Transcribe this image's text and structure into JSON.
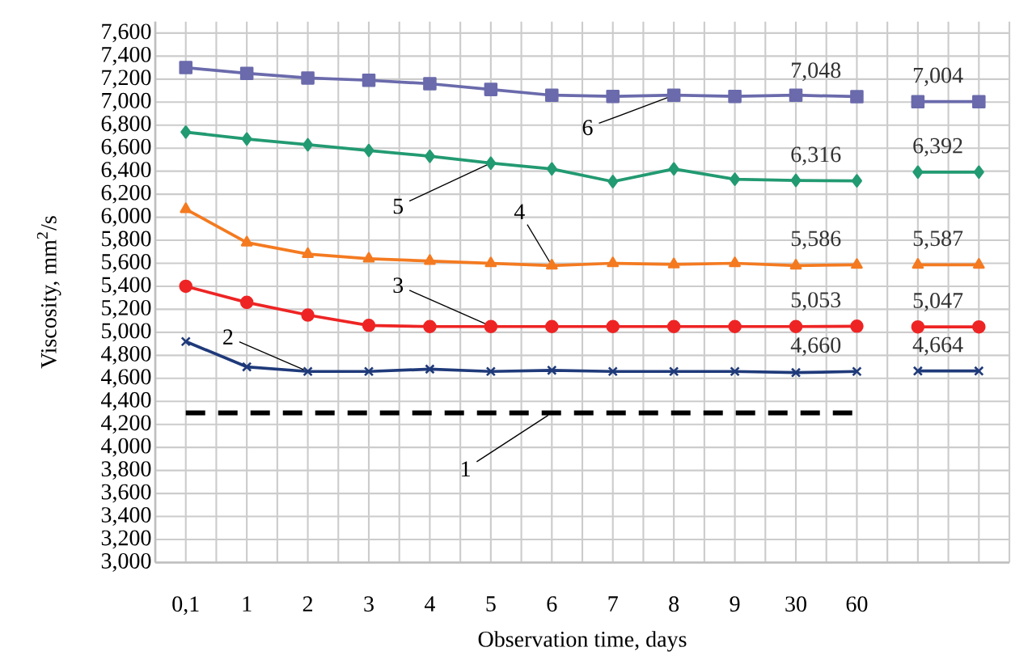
{
  "chart_data": {
    "type": "line",
    "xlabel": "Observation time, days",
    "ylabel": "Viscosity, mm$^{2}$/s",
    "categories": [
      "0,1",
      "1",
      "2",
      "3",
      "4",
      "5",
      "6",
      "7",
      "8",
      "9",
      "30",
      "60",
      null,
      null
    ],
    "ylim": [
      3000,
      7700
    ],
    "yticks": [
      {
        "value": 3000,
        "label": "3,000"
      },
      {
        "value": 3200,
        "label": "3,200"
      },
      {
        "value": 3400,
        "label": "3,400"
      },
      {
        "value": 3600,
        "label": "3,600"
      },
      {
        "value": 3800,
        "label": "3,800"
      },
      {
        "value": 4000,
        "label": "4,000"
      },
      {
        "value": 4200,
        "label": "4,200"
      },
      {
        "value": 4400,
        "label": "4,400"
      },
      {
        "value": 4600,
        "label": "4,600"
      },
      {
        "value": 4800,
        "label": "4,800"
      },
      {
        "value": 5000,
        "label": "5,000"
      },
      {
        "value": 5200,
        "label": "5,200"
      },
      {
        "value": 5400,
        "label": "5,400"
      },
      {
        "value": 5600,
        "label": "5,600"
      },
      {
        "value": 5800,
        "label": "5,800"
      },
      {
        "value": 6000,
        "label": "6,000"
      },
      {
        "value": 6200,
        "label": "6,200"
      },
      {
        "value": 6400,
        "label": "6,400"
      },
      {
        "value": 6600,
        "label": "6,600"
      },
      {
        "value": 6800,
        "label": "6,800"
      },
      {
        "value": 7000,
        "label": "7,000"
      },
      {
        "value": 7200,
        "label": "7,200"
      },
      {
        "value": 7400,
        "label": "7,400"
      },
      {
        "value": 7600,
        "label": "7,600"
      }
    ],
    "grid": true,
    "series": [
      {
        "color": "#000000",
        "marker": "none",
        "line_style": "dashed",
        "values": [
          4300,
          4300,
          4300,
          4300,
          4300,
          4300,
          4300,
          4300,
          4300,
          4300,
          4300,
          4300,
          null,
          null
        ]
      },
      {
        "color": "#1f3a7a",
        "marker": "cross",
        "values": [
          4920,
          4700,
          4660,
          4660,
          4680,
          4660,
          4670,
          4660,
          4660,
          4660,
          4650,
          4660,
          null,
          null
        ],
        "value_labels": [
          null,
          null,
          null,
          null,
          null,
          null,
          null,
          null,
          null,
          null,
          null,
          "4,660",
          null,
          null
        ]
      },
      {
        "color": "#1f3a7a",
        "marker": "cross",
        "values": [
          null,
          null,
          null,
          null,
          null,
          null,
          null,
          null,
          null,
          null,
          null,
          null,
          4664,
          4664
        ],
        "value_labels": [
          null,
          null,
          null,
          null,
          null,
          null,
          null,
          null,
          null,
          null,
          null,
          null,
          null,
          "4,664"
        ]
      },
      {
        "color": "#ee2424",
        "marker": "circle",
        "values": [
          5400,
          5260,
          5150,
          5060,
          5050,
          5050,
          5050,
          5050,
          5050,
          5050,
          5050,
          5053,
          null,
          null
        ],
        "value_labels": [
          null,
          null,
          null,
          null,
          null,
          null,
          null,
          null,
          null,
          null,
          null,
          "5,053",
          null,
          null
        ]
      },
      {
        "color": "#ee2424",
        "marker": "circle",
        "values": [
          null,
          null,
          null,
          null,
          null,
          null,
          null,
          null,
          null,
          null,
          null,
          null,
          5047,
          5047
        ],
        "value_labels": [
          null,
          null,
          null,
          null,
          null,
          null,
          null,
          null,
          null,
          null,
          null,
          null,
          null,
          "5,047"
        ]
      },
      {
        "color": "#f47a20",
        "marker": "triangle",
        "values": [
          6070,
          5780,
          5680,
          5640,
          5620,
          5600,
          5580,
          5600,
          5590,
          5600,
          5580,
          5586,
          null,
          null
        ],
        "value_labels": [
          null,
          null,
          null,
          null,
          null,
          null,
          null,
          null,
          null,
          null,
          null,
          "5,586",
          null,
          null
        ]
      },
      {
        "color": "#f47a20",
        "marker": "triangle",
        "values": [
          null,
          null,
          null,
          null,
          null,
          null,
          null,
          null,
          null,
          null,
          null,
          null,
          5587,
          5587
        ],
        "value_labels": [
          null,
          null,
          null,
          null,
          null,
          null,
          null,
          null,
          null,
          null,
          null,
          null,
          null,
          "5,587"
        ]
      },
      {
        "color": "#229a72",
        "marker": "diamond",
        "values": [
          6740,
          6680,
          6630,
          6580,
          6530,
          6470,
          6420,
          6310,
          6420,
          6330,
          6320,
          6316,
          null,
          null
        ],
        "value_labels": [
          null,
          null,
          null,
          null,
          null,
          null,
          null,
          null,
          null,
          null,
          null,
          "6,316",
          null,
          null
        ]
      },
      {
        "color": "#229a72",
        "marker": "diamond",
        "values": [
          null,
          null,
          null,
          null,
          null,
          null,
          null,
          null,
          null,
          null,
          null,
          null,
          6392,
          6392
        ],
        "value_labels": [
          null,
          null,
          null,
          null,
          null,
          null,
          null,
          null,
          null,
          null,
          null,
          null,
          null,
          "6,392"
        ]
      },
      {
        "color": "#6a6aac",
        "marker": "square",
        "values": [
          7300,
          7250,
          7210,
          7190,
          7160,
          7110,
          7060,
          7050,
          7060,
          7050,
          7060,
          7048,
          null,
          null
        ],
        "value_labels": [
          null,
          null,
          null,
          null,
          null,
          null,
          null,
          null,
          null,
          null,
          null,
          "7,048",
          null,
          null
        ]
      },
      {
        "color": "#6a6aac",
        "marker": "square",
        "values": [
          null,
          null,
          null,
          null,
          null,
          null,
          null,
          null,
          null,
          null,
          null,
          null,
          7004,
          7004
        ],
        "value_labels": [
          null,
          null,
          null,
          null,
          null,
          null,
          null,
          null,
          null,
          null,
          null,
          null,
          null,
          "7,004"
        ]
      }
    ],
    "annotations": [
      {
        "text": "1",
        "x": "6",
        "y": 4300
      },
      {
        "text": "2",
        "x": "2",
        "y": 4660
      },
      {
        "text": "3",
        "x": "5",
        "y": 5053
      },
      {
        "text": "4",
        "x": "6",
        "y": 5580
      },
      {
        "text": "5",
        "x": "5",
        "y": 6470
      },
      {
        "text": "6",
        "x": "8",
        "y": 7060
      }
    ]
  }
}
